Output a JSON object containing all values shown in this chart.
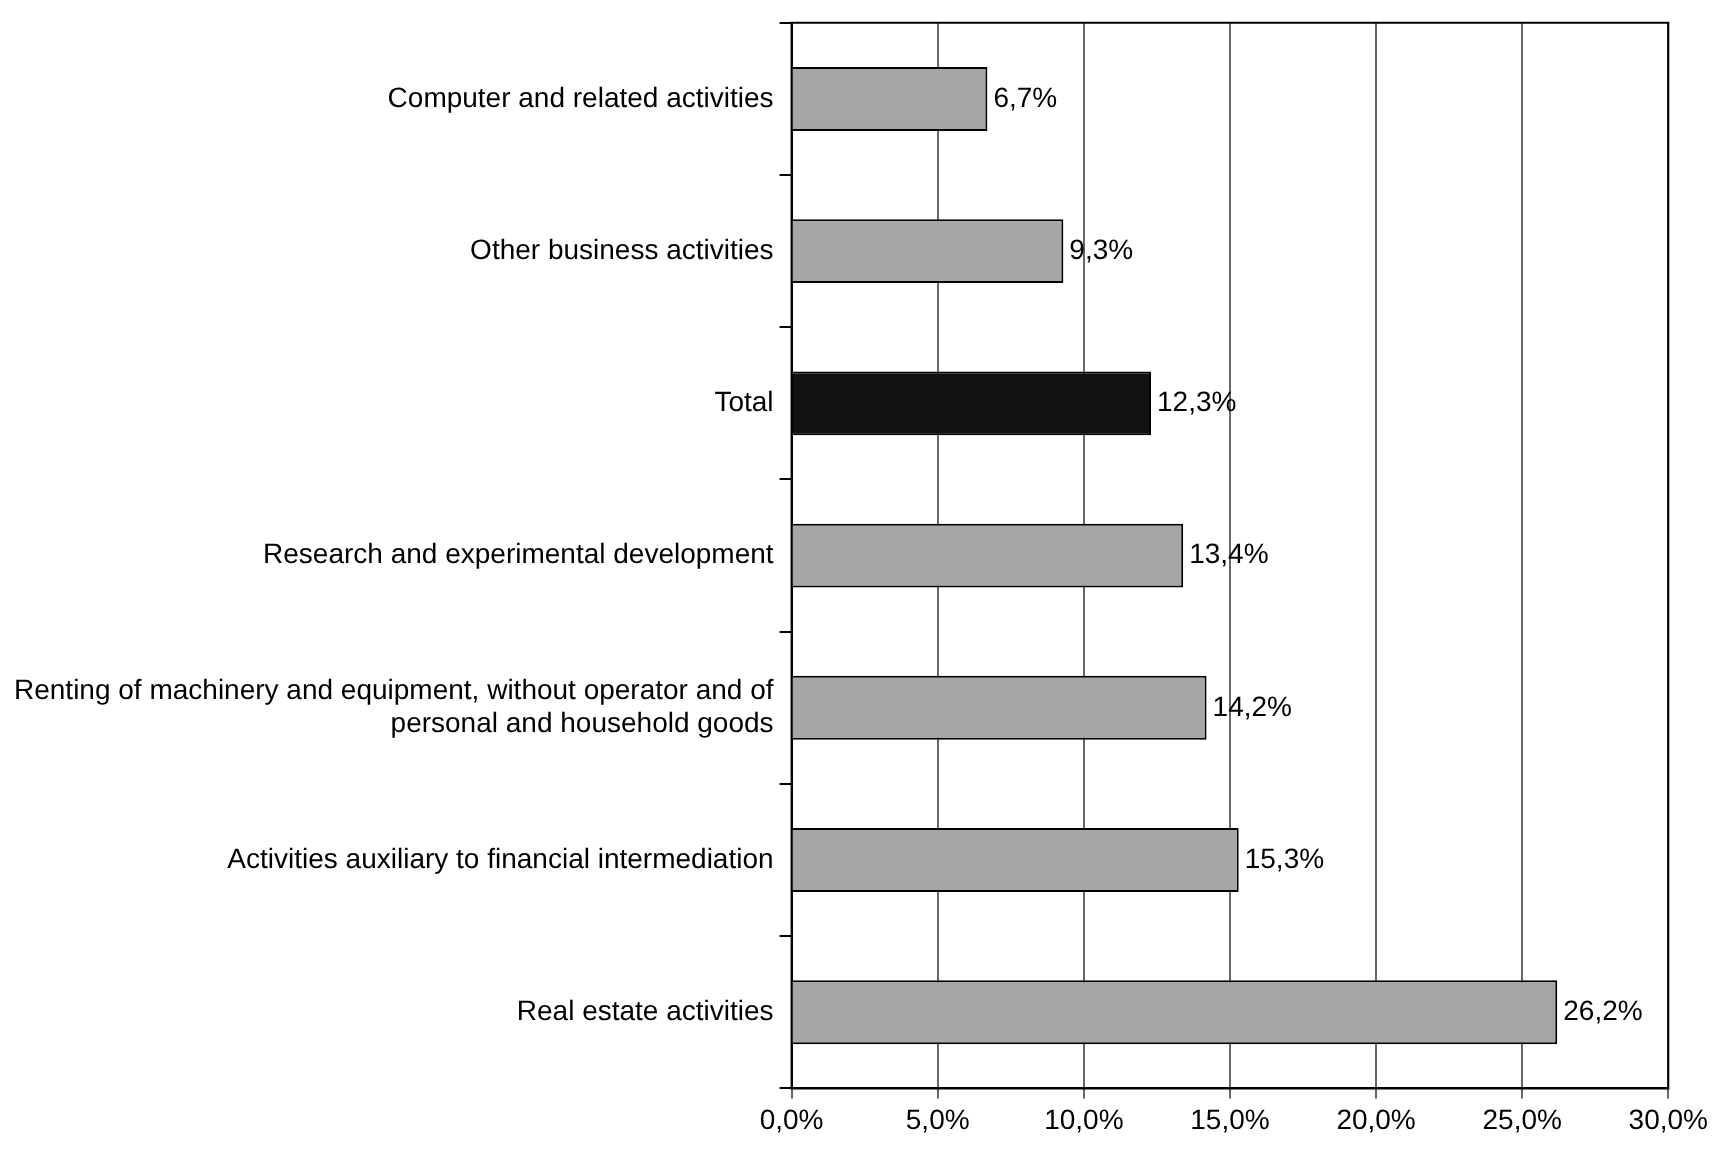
{
  "chart_data": {
    "type": "bar",
    "orientation": "horizontal",
    "categories": [
      "Computer and related activities",
      "Other business activities",
      "Total",
      "Research and experimental development",
      "Renting of machinery and equipment, without operator and of personal and household goods",
      "Activities auxiliary to financial intermediation",
      "Real estate activities"
    ],
    "values": [
      6.7,
      9.3,
      12.3,
      13.4,
      14.2,
      15.3,
      26.2
    ],
    "colors": [
      "#a6a6a6",
      "#a6a6a6",
      "#111111",
      "#a6a6a6",
      "#a6a6a6",
      "#a6a6a6",
      "#a6a6a6"
    ],
    "value_labels": [
      "6,7%",
      "9,3%",
      "12,3%",
      "13,4%",
      "14,2%",
      "15,3%",
      "26,2%"
    ],
    "xlim": [
      0,
      30
    ],
    "xticks": [
      {
        "value": 0,
        "label": "0,0%"
      },
      {
        "value": 5,
        "label": "5,0%"
      },
      {
        "value": 10,
        "label": "10,0%"
      },
      {
        "value": 15,
        "label": "15,0%"
      },
      {
        "value": 20,
        "label": "20,0%"
      },
      {
        "value": 25,
        "label": "25,0%"
      },
      {
        "value": 30,
        "label": "30,0%"
      }
    ],
    "grid": "x",
    "legend": false
  }
}
